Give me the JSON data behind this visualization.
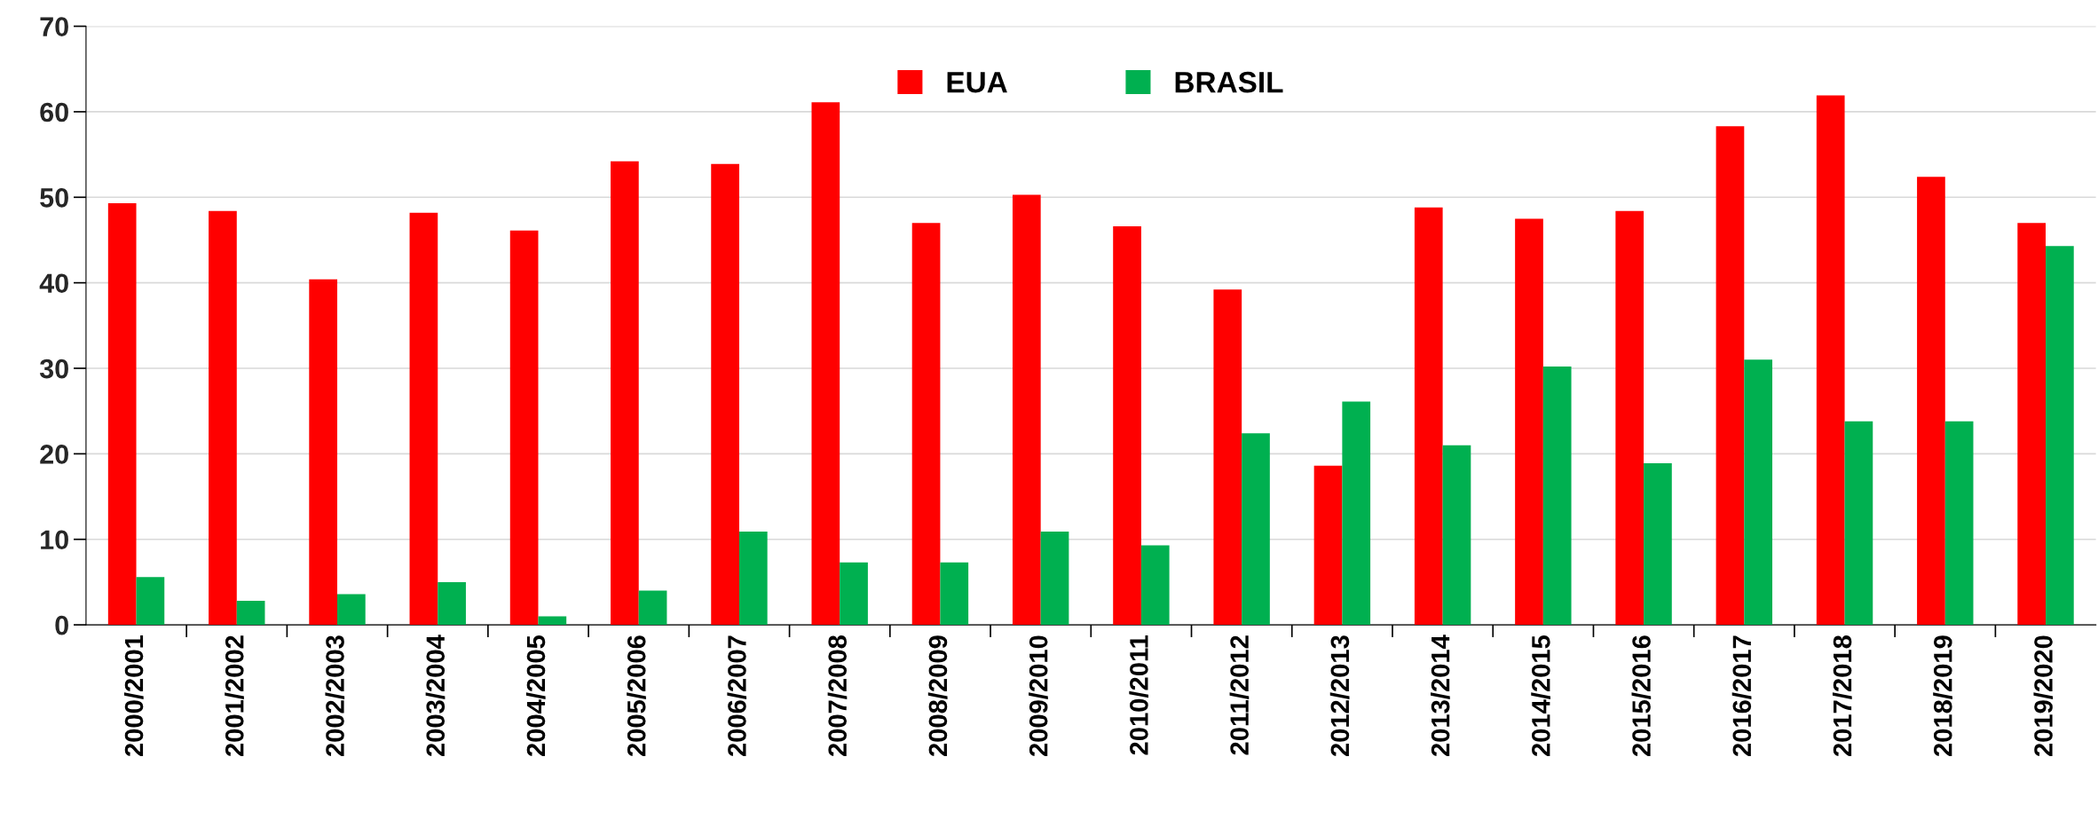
{
  "chart_data": {
    "type": "bar",
    "categories": [
      "2000/2001",
      "2001/2002",
      "2002/2003",
      "2003/2004",
      "2004/2005",
      "2005/2006",
      "2006/2007",
      "2007/2008",
      "2008/2009",
      "2009/2010",
      "2010/2011",
      "2011/2012",
      "2012/2013",
      "2013/2014",
      "2014/2015",
      "2015/2016",
      "2016/2017",
      "2017/2018",
      "2018/2019",
      "2019/2020"
    ],
    "series": [
      {
        "name": "EUA",
        "color": "#ff0000",
        "values": [
          49.3,
          48.4,
          40.4,
          48.2,
          46.1,
          54.2,
          53.9,
          61.1,
          47.0,
          50.3,
          46.6,
          39.2,
          18.6,
          48.8,
          47.5,
          48.4,
          58.3,
          61.9,
          52.4,
          47.0
        ]
      },
      {
        "name": "BRASIL",
        "color": "#00b050",
        "values": [
          5.6,
          2.8,
          3.6,
          5.0,
          1.0,
          4.0,
          10.9,
          7.3,
          7.3,
          10.9,
          9.3,
          22.4,
          26.1,
          21.0,
          30.2,
          18.9,
          31.0,
          23.8,
          23.8,
          44.3
        ]
      }
    ],
    "ylim": [
      0,
      70
    ],
    "yticks": [
      0,
      10,
      20,
      30,
      40,
      50,
      60,
      70
    ],
    "grid": "y",
    "legend": "top"
  }
}
